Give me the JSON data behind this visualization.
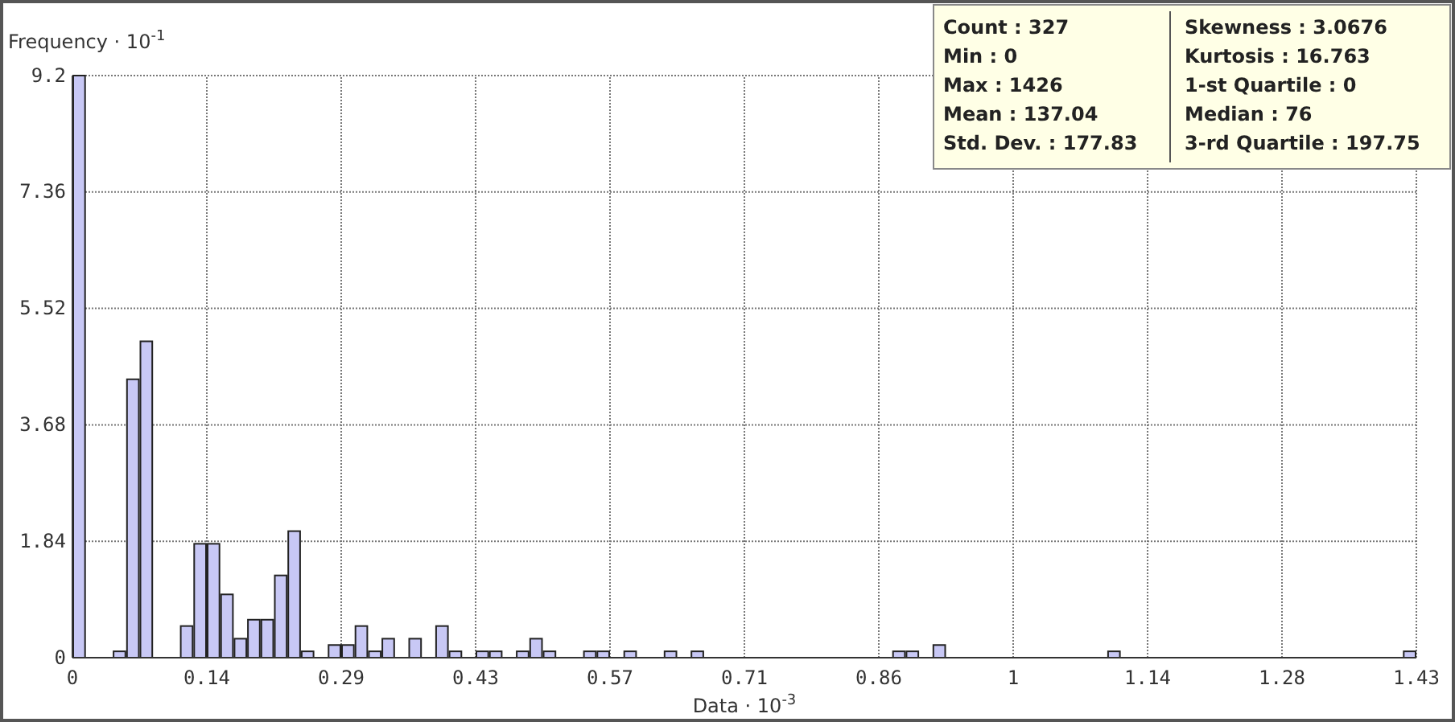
{
  "chart_data": {
    "type": "histogram",
    "xlabel": "Data · 10$^{-3}$",
    "ylabel": "Frequency · 10$^{-1}$",
    "color": "#c8c8f5",
    "bins": [
      0,
      0.01426,
      0.02852,
      0.04278,
      0.05704,
      0.0713,
      0.08556,
      0.09982,
      0.11408,
      0.12834,
      0.1426,
      0.15686,
      0.17112,
      0.18538,
      0.19964,
      0.2139,
      0.22816,
      0.24242,
      0.25668,
      0.27094,
      0.2852,
      0.29946,
      0.31372,
      0.32798,
      0.34224,
      0.3565,
      0.37076,
      0.38502,
      0.39928,
      0.41354,
      0.4278,
      0.44206,
      0.45632,
      0.47058,
      0.48484,
      0.4991,
      0.51336,
      0.52762,
      0.54188,
      0.55614,
      0.5704,
      0.58466,
      0.59892,
      0.61318,
      0.62744,
      0.6417,
      0.65596,
      0.67022,
      0.68448,
      0.69874,
      0.713,
      0.72726,
      0.74152,
      0.75578,
      0.77004,
      0.7843,
      0.79856,
      0.81282,
      0.82708,
      0.84134,
      0.8556,
      0.86986,
      0.88412,
      0.89838,
      0.91264,
      0.9269,
      0.94116,
      0.95542,
      0.96968,
      0.98394,
      0.9982,
      1.01246,
      1.02672,
      1.04098,
      1.05524,
      1.0695,
      1.08376,
      1.09802,
      1.11228,
      1.12654,
      1.1408,
      1.15506,
      1.16932,
      1.18358,
      1.19784,
      1.2121,
      1.22636,
      1.24062,
      1.25488,
      1.26914,
      1.2834,
      1.29766,
      1.31192,
      1.32618,
      1.34044,
      1.3547,
      1.36896,
      1.38322,
      1.39748,
      1.41174,
      1.426
    ],
    "values": [
      9.2,
      0,
      0,
      0.1,
      4.4,
      5.0,
      0,
      0,
      0.5,
      1.8,
      1.8,
      1.0,
      0.3,
      0.6,
      0.6,
      1.3,
      2.0,
      0.1,
      0,
      0.2,
      0.2,
      0.5,
      0.1,
      0.3,
      0,
      0.3,
      0,
      0.5,
      0.1,
      0,
      0.1,
      0.1,
      0,
      0.1,
      0.3,
      0.1,
      0,
      0,
      0.1,
      0.1,
      0,
      0.1,
      0,
      0,
      0.1,
      0,
      0.1,
      0,
      0,
      0,
      0,
      0,
      0,
      0,
      0,
      0,
      0,
      0,
      0,
      0,
      0,
      0.1,
      0.1,
      0,
      0.2,
      0,
      0,
      0,
      0,
      0,
      0,
      0,
      0,
      0,
      0,
      0,
      0,
      0.1,
      0,
      0,
      0,
      0,
      0,
      0,
      0,
      0,
      0,
      0,
      0,
      0,
      0,
      0,
      0,
      0,
      0,
      0,
      0,
      0,
      0,
      0.1
    ],
    "xlim": [
      0,
      1.426
    ],
    "xticks": [
      0,
      {
        "value": 0.1426,
        "label": "0.14"
      },
      {
        "value": 0.2852,
        "label": "0.29"
      },
      {
        "value": 0.4278,
        "label": "0.43"
      },
      {
        "value": 0.5704,
        "label": "0.57"
      },
      {
        "value": 0.713,
        "label": "0.71"
      },
      {
        "value": 0.8556,
        "label": "0.86"
      },
      {
        "value": 0.9982,
        "label": "1"
      },
      {
        "value": 1.1408,
        "label": "1.14"
      },
      {
        "value": 1.2834,
        "label": "1.28"
      },
      {
        "value": 1.426,
        "label": "1.43"
      }
    ],
    "ylim": [
      0,
      9.2
    ],
    "yticks": [
      0,
      1.84,
      3.68,
      5.52,
      7.36,
      9.2
    ],
    "grid": true,
    "annotations": [
      "Count : 327",
      "Min : 0",
      "Max : 1426",
      "Mean : 137.04",
      "Std. Dev. : 177.83",
      "Skewness : 3.0676",
      "Kurtosis : 16.763",
      "1-st Quartile : 0",
      "Median : 76",
      "3-rd Quartile : 197.75"
    ]
  }
}
